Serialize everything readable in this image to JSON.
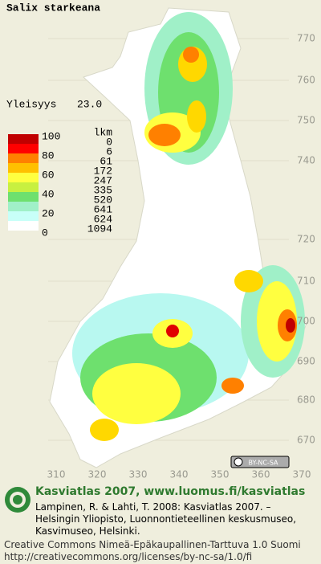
{
  "title": "Salix starkeana",
  "frequency": {
    "label": "Yleisyys",
    "value": "23.0"
  },
  "legend": {
    "scale": [
      "100",
      "80",
      "60",
      "40",
      "20",
      "0"
    ],
    "count_header": "lkm",
    "counts": [
      "0",
      "6",
      "61",
      "172",
      "247",
      "335",
      "520",
      "641",
      "624",
      "1094"
    ],
    "colors": [
      "#c00000",
      "#ff0000",
      "#ff8000",
      "#ffc000",
      "#ffff40",
      "#c8f040",
      "#6ee06e",
      "#a0f0c8",
      "#c8fff8",
      "#ffffff"
    ]
  },
  "grid": {
    "y_labels": [
      "770",
      "760",
      "750",
      "740",
      "720",
      "710",
      "700",
      "690",
      "680",
      "670"
    ],
    "x_labels": [
      "310",
      "320",
      "330",
      "340",
      "350",
      "360",
      "370"
    ]
  },
  "license_badge": "BY-NC-SA",
  "footer": {
    "site": "Kasviatlas 2007, www.luomus.fi/kasviatlas",
    "citation": [
      "Lampinen, R. & Lahti, T. 2008: Kasviatlas 2007. –",
      "Helsingin Yliopisto, Luonnontieteellinen keskusmuseo,",
      "Kasvimuseo, Helsinki."
    ],
    "license": [
      "Creative Commons Nimeä-Epäkaupallinen-Tarttuva 1.0 Suomi",
      "http://creativecommons.org/licenses/by-nc-sa/1.0/fi"
    ]
  }
}
